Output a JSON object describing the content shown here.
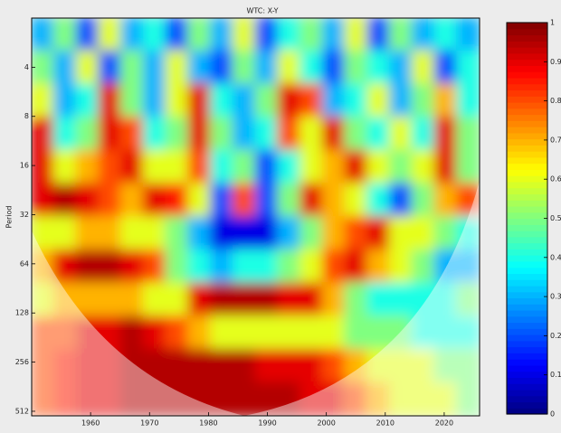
{
  "chart_data": {
    "type": "heatmap",
    "title": "WTC: X-Y",
    "y_label": "Period",
    "xlim": [
      1950,
      2026
    ],
    "xticks": [
      1960,
      1970,
      1980,
      1990,
      2000,
      2010,
      2020
    ],
    "ylim": [
      2,
      546
    ],
    "y_log": true,
    "yticks": [
      4,
      8,
      16,
      32,
      64,
      128,
      256,
      512
    ],
    "clim": [
      0,
      1
    ],
    "cticks": [
      0,
      0.1,
      0.2,
      0.3,
      0.4,
      0.5,
      0.6,
      0.7,
      0.8,
      0.9,
      1
    ],
    "colormap": "jet",
    "z": [
      [
        0.3,
        0.5,
        0.2,
        0.6,
        0.3,
        0.4,
        0.2,
        0.5,
        0.3,
        0.6,
        0.2,
        0.4,
        0.5,
        0.3,
        0.6,
        0.2,
        0.5,
        0.3,
        0.4,
        0.3
      ],
      [
        0.5,
        0.3,
        0.6,
        0.2,
        0.5,
        0.3,
        0.6,
        0.3,
        0.2,
        0.5,
        0.3,
        0.6,
        0.4,
        0.2,
        0.5,
        0.4,
        0.3,
        0.6,
        0.2,
        0.4
      ],
      [
        0.6,
        0.3,
        0.4,
        0.9,
        0.5,
        0.3,
        0.6,
        0.9,
        0.4,
        0.3,
        0.5,
        0.9,
        0.8,
        0.3,
        0.4,
        0.6,
        0.3,
        0.5,
        0.7,
        0.4
      ],
      [
        0.9,
        0.4,
        0.5,
        0.9,
        0.8,
        0.4,
        0.5,
        0.9,
        0.5,
        0.3,
        0.4,
        0.8,
        0.6,
        0.9,
        0.5,
        0.4,
        0.6,
        0.4,
        0.9,
        0.5
      ],
      [
        0.9,
        0.6,
        0.7,
        0.8,
        0.9,
        0.6,
        0.6,
        0.8,
        0.4,
        0.5,
        0.2,
        0.4,
        0.6,
        0.7,
        0.9,
        0.6,
        0.5,
        0.6,
        0.9,
        0.5
      ],
      [
        0.9,
        0.95,
        0.9,
        0.8,
        0.7,
        0.9,
        0.85,
        0.6,
        0.2,
        0.8,
        0.2,
        0.5,
        0.9,
        0.7,
        0.6,
        0.4,
        0.2,
        0.5,
        0.7,
        0.8
      ],
      [
        0.6,
        0.6,
        0.7,
        0.7,
        0.6,
        0.6,
        0.5,
        0.3,
        0.1,
        0.1,
        0.1,
        0.3,
        0.5,
        0.7,
        0.8,
        0.9,
        0.6,
        0.6,
        0.5,
        0.4
      ],
      [
        0.7,
        0.9,
        0.95,
        0.95,
        0.9,
        0.8,
        0.5,
        0.4,
        0.3,
        0.4,
        0.4,
        0.5,
        0.6,
        0.8,
        0.9,
        0.7,
        0.6,
        0.5,
        0.3,
        0.3
      ],
      [
        0.6,
        0.7,
        0.7,
        0.7,
        0.7,
        0.6,
        0.6,
        0.9,
        0.95,
        0.95,
        0.95,
        0.9,
        0.9,
        0.7,
        0.5,
        0.4,
        0.4,
        0.4,
        0.4,
        0.5
      ],
      [
        0.8,
        0.8,
        0.9,
        0.9,
        0.95,
        0.9,
        0.8,
        0.7,
        0.6,
        0.6,
        0.6,
        0.6,
        0.6,
        0.6,
        0.5,
        0.5,
        0.5,
        0.4,
        0.4,
        0.4
      ],
      [
        0.8,
        0.85,
        0.9,
        0.9,
        0.95,
        0.95,
        0.95,
        0.95,
        0.95,
        0.95,
        0.9,
        0.9,
        0.9,
        0.8,
        0.7,
        0.6,
        0.6,
        0.6,
        0.5,
        0.5
      ],
      [
        0.8,
        0.85,
        0.9,
        0.9,
        0.95,
        0.95,
        0.95,
        0.95,
        0.95,
        0.95,
        0.95,
        0.95,
        0.9,
        0.9,
        0.8,
        0.7,
        0.6,
        0.6,
        0.6,
        0.5
      ]
    ]
  }
}
